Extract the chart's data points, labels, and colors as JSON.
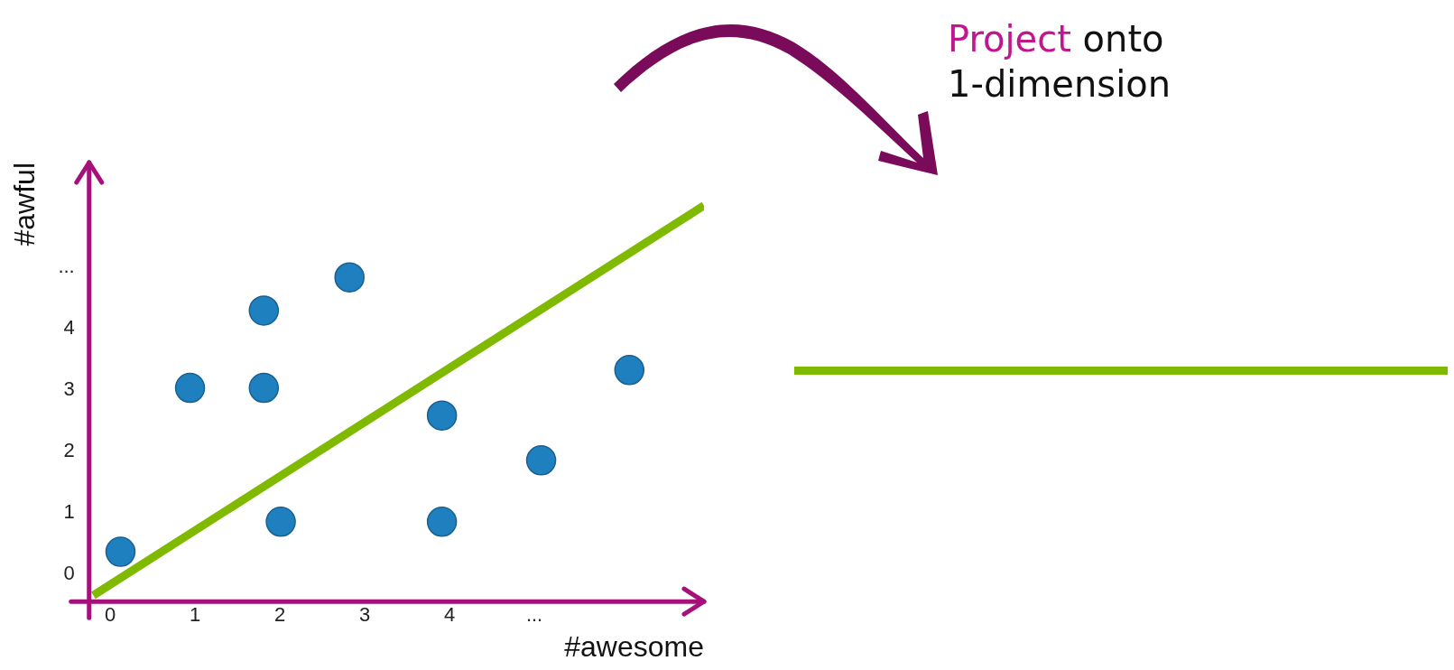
{
  "chart_data": {
    "type": "scatter",
    "xlabel": "#awesome",
    "ylabel": "#awful",
    "xlim": [
      -0.25,
      7.0
    ],
    "ylim": [
      -0.45,
      6.7
    ],
    "xticks": [
      0,
      1,
      2,
      3,
      4,
      {
        "value": 5,
        "label": "..."
      }
    ],
    "yticks": [
      0,
      1,
      2,
      3,
      4,
      {
        "value": 5,
        "label": "..."
      }
    ],
    "grid": false,
    "legend": false,
    "marker": "circle",
    "series": [
      {
        "type": "scatter",
        "color": "#1f80c0",
        "x": [
          0.12,
          0.94,
          1.81,
          1.81,
          2.82,
          2.01,
          3.91,
          3.91,
          5.08,
          6.12
        ],
        "values": [
          0.36,
          3.03,
          3.03,
          4.29,
          4.83,
          0.85,
          2.58,
          0.85,
          1.85,
          3.32
        ]
      },
      {
        "type": "line",
        "color": "#7fba00",
        "marker": "none",
        "x": [
          -0.2,
          7.0
        ],
        "values": [
          -0.35,
          6.0
        ]
      }
    ],
    "annotations": [
      "Project onto 1-dimension"
    ]
  }
}
